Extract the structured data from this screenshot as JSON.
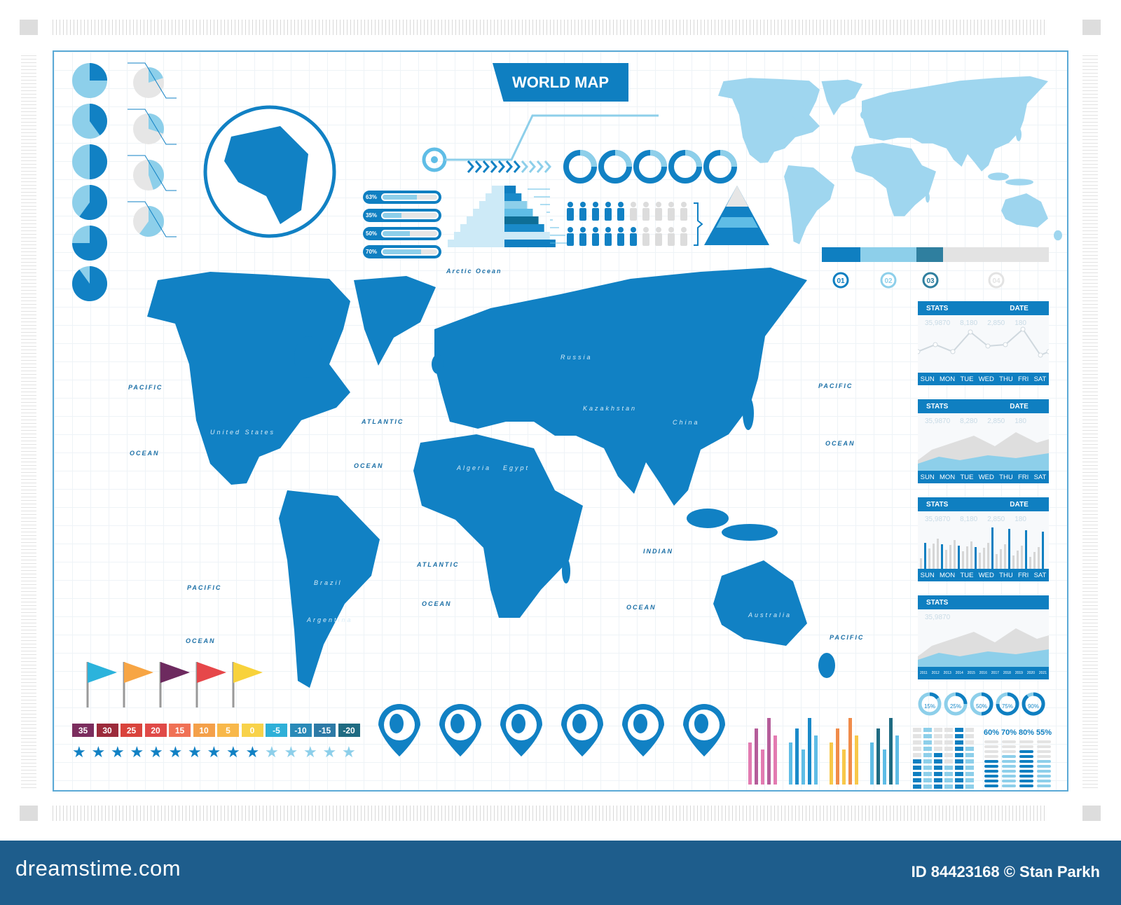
{
  "title": "WORLD MAP",
  "progress_bars": [
    {
      "label": "63%",
      "value": 63
    },
    {
      "label": "35%",
      "value": 35
    },
    {
      "label": "50%",
      "value": 50
    },
    {
      "label": "70%",
      "value": 70
    }
  ],
  "steps": [
    "01",
    "02",
    "03",
    "04"
  ],
  "stat_panels": [
    {
      "stats": "STATS",
      "date": "DATE",
      "values": [
        "35,9870",
        "8,180",
        "2,850",
        "180"
      ],
      "days": [
        "SUN",
        "MON",
        "TUE",
        "WED",
        "THU",
        "FRI",
        "SAT"
      ],
      "type": "line"
    },
    {
      "stats": "STATS",
      "date": "DATE",
      "values": [
        "35,9870",
        "8,280",
        "2,850",
        "180"
      ],
      "days": [
        "SUN",
        "MON",
        "TUE",
        "WED",
        "THU",
        "FRI",
        "SAT"
      ],
      "type": "area"
    },
    {
      "stats": "STATS",
      "date": "DATE",
      "values": [
        "35,9870",
        "8,180",
        "2,850",
        "180"
      ],
      "days": [
        "SUN",
        "MON",
        "TUE",
        "WED",
        "THU",
        "FRI",
        "SAT"
      ],
      "type": "bar"
    },
    {
      "stats": "STATS",
      "values": [
        "35,9870"
      ],
      "years": [
        "2011",
        "2012",
        "2013",
        "2014",
        "2015",
        "2016",
        "2017",
        "2018",
        "2019",
        "2020",
        "2021"
      ],
      "type": "area"
    }
  ],
  "donut_percents": [
    {
      "label": "15%",
      "value": 15
    },
    {
      "label": "25%",
      "value": 25
    },
    {
      "label": "50%",
      "value": 50
    },
    {
      "label": "75%",
      "value": 75
    },
    {
      "label": "90%",
      "value": 90
    }
  ],
  "equalizer_labels": [
    "60%",
    "70%",
    "80%",
    "55%"
  ],
  "temperature_scale": [
    {
      "label": "35",
      "color": "#7b2d5e"
    },
    {
      "label": "30",
      "color": "#9c2b3b"
    },
    {
      "label": "25",
      "color": "#d9433c"
    },
    {
      "label": "20",
      "color": "#e04a48"
    },
    {
      "label": "15",
      "color": "#f07155"
    },
    {
      "label": "10",
      "color": "#f4a04a"
    },
    {
      "label": "5",
      "color": "#f8b84a"
    },
    {
      "label": "0",
      "color": "#f8d24a"
    },
    {
      "label": "-5",
      "color": "#2fb0d8"
    },
    {
      "label": "-10",
      "color": "#2a8ab8"
    },
    {
      "label": "-15",
      "color": "#2d7aa6"
    },
    {
      "label": "-20",
      "color": "#1f6b82"
    }
  ],
  "rating": {
    "filled": 10,
    "total": 15
  },
  "flag_colors": [
    "#2bb3dc",
    "#f7a544",
    "#6d2a5f",
    "#e6474a",
    "#f8d23b"
  ],
  "oceans": [
    {
      "t": "Arctic Ocean",
      "k": "arctic"
    },
    {
      "t": "PACIFIC",
      "k": "p1"
    },
    {
      "t": "OCEAN",
      "k": "o1"
    },
    {
      "t": "ATLANTIC",
      "k": "a1"
    },
    {
      "t": "OCEAN",
      "k": "o2"
    },
    {
      "t": "ATLANTIC",
      "k": "a2"
    },
    {
      "t": "OCEAN",
      "k": "o3"
    },
    {
      "t": "INDIAN",
      "k": "i1"
    },
    {
      "t": "OCEAN",
      "k": "o4"
    },
    {
      "t": "PACIFIC",
      "k": "p2"
    },
    {
      "t": "OCEAN",
      "k": "o5"
    },
    {
      "t": "PACIFIC",
      "k": "p3"
    },
    {
      "t": "OCEAN",
      "k": "o6"
    },
    {
      "t": "PACIFIC",
      "k": "p4"
    }
  ],
  "countries": [
    "United States",
    "Brazil",
    "Russia",
    "China",
    "Australia",
    "Kazakhstan",
    "Argentina",
    "Algeria",
    "Egypt"
  ],
  "colors": {
    "primary": "#0f7fc1",
    "light": "#8dcfea",
    "land": "#1181c4",
    "land_small": "#9fd6ef"
  },
  "footer": {
    "logo": "dreamstime.com",
    "id": "ID 84423168 © Stan Parkh"
  }
}
